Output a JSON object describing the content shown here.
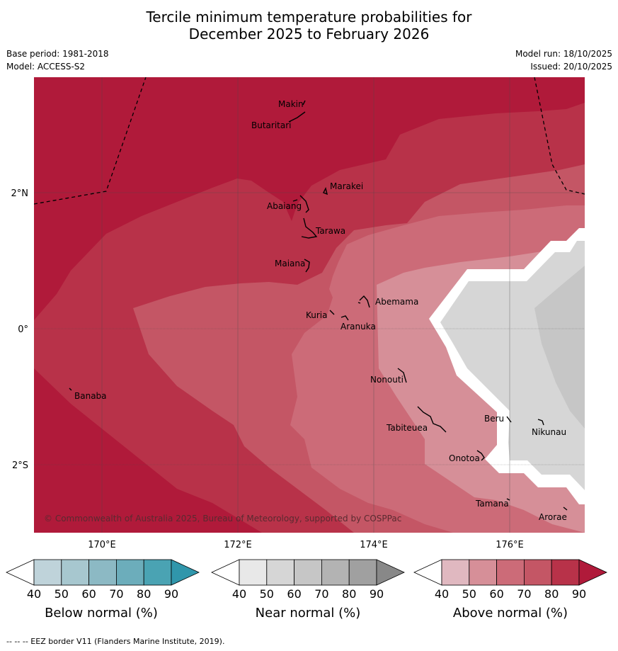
{
  "header": {
    "title_line1": "Tercile minimum temperature probabilities for",
    "title_line2": "December 2025 to February 2026",
    "base_period": "Base period: 1981-2018",
    "model": "Model: ACCESS-S2",
    "model_run": "Model run: 18/10/2025",
    "issued": "Issued: 20/10/2025"
  },
  "map": {
    "lat_labels": [
      "2°N",
      "0°",
      "2°S"
    ],
    "lon_labels": [
      "170°E",
      "172°E",
      "174°E",
      "176°E"
    ],
    "places": [
      "Makin",
      "Butaritari",
      "Marakei",
      "Abaiang",
      "Tarawa",
      "Maiana",
      "Abemama",
      "Kuria",
      "Aranuka",
      "Nonouti",
      "Banaba",
      "Beru",
      "Nikunau",
      "Tabiteuea",
      "Onotoa",
      "Tamana",
      "Arorae"
    ],
    "copyright": "© Commonwealth of Australia 2025, Bureau of Meteorology, supported by COSPPac"
  },
  "colorbars": [
    {
      "title": "Below normal (%)",
      "ticks": [
        "40",
        "50",
        "60",
        "70",
        "80",
        "90"
      ],
      "colors": [
        "#bfd3da",
        "#a7c7cf",
        "#8cb9c4",
        "#6cadbb",
        "#4aa3b3",
        "#3096ab"
      ]
    },
    {
      "title": "Near normal (%)",
      "ticks": [
        "40",
        "50",
        "60",
        "70",
        "80",
        "90"
      ],
      "colors": [
        "#e8e8e8",
        "#d6d6d6",
        "#c6c6c6",
        "#b3b3b3",
        "#a0a0a0",
        "#888888"
      ]
    },
    {
      "title": "Above normal (%)",
      "ticks": [
        "40",
        "50",
        "60",
        "70",
        "80",
        "90"
      ],
      "colors": [
        "#e0b8c0",
        "#d68f98",
        "#cc6b78",
        "#c45665",
        "#b83249",
        "#b01a3a"
      ]
    }
  ],
  "footer": "--  --  -- EEZ border V11 (Flanders Marine Institute, 2019)."
}
